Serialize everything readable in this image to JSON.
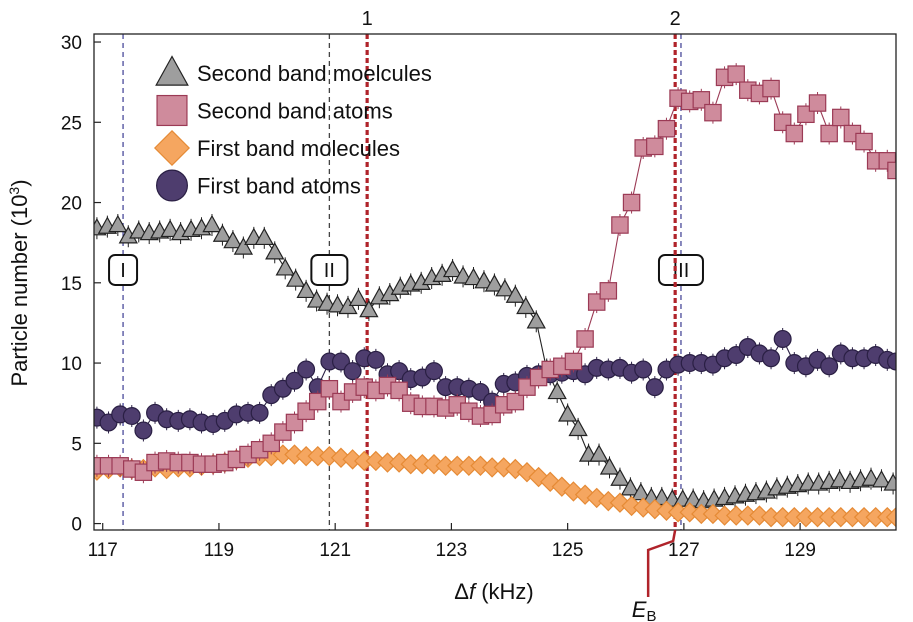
{
  "chart_data": {
    "type": "scatter",
    "xlabel_symbol": "Δ",
    "xlabel_var": "f",
    "xlabel_unit": " (kHz)",
    "ylabel": "Particle number (10",
    "ylabel_exp": "3",
    "ylabel_close": ")",
    "xlim": [
      116.85,
      130.65
    ],
    "ylim": [
      -0.4,
      30.5
    ],
    "xticks": [
      117,
      119,
      121,
      123,
      125,
      127,
      129
    ],
    "yticks": [
      0,
      5,
      10,
      15,
      20,
      25,
      30
    ],
    "markers": [
      {
        "label": "1",
        "x": 121.55,
        "color": "#b0232a"
      },
      {
        "label": "2",
        "x": 126.85,
        "color": "#b0232a"
      }
    ],
    "regions": [
      {
        "label": "I",
        "x": 117.35,
        "label_x": 117.35,
        "label_y": 15.8,
        "color": "#4a4a9a"
      },
      {
        "label": "II",
        "x": 120.9,
        "label_x": 120.9,
        "label_y": 15.8,
        "color": "#444444"
      },
      {
        "label": "III",
        "x": 126.95,
        "label_x": 126.95,
        "label_y": 15.8,
        "color": "#4a4a9a"
      }
    ],
    "eb_label": "E",
    "eb_sub": "B",
    "eb_x": 126.85,
    "series": [
      {
        "name": "Second band moelcules",
        "marker": "triangle",
        "fill": "#9e9e9e",
        "stroke": "#222222",
        "line": "#222222",
        "x": [
          116.9,
          117.08,
          117.26,
          117.44,
          117.62,
          117.8,
          117.98,
          118.16,
          118.34,
          118.52,
          118.7,
          118.88,
          119.06,
          119.24,
          119.42,
          119.6,
          119.78,
          119.96,
          120.14,
          120.32,
          120.5,
          120.68,
          120.86,
          121.04,
          121.22,
          121.4,
          121.58,
          121.76,
          121.94,
          122.12,
          122.3,
          122.48,
          122.66,
          122.84,
          123.02,
          123.2,
          123.38,
          123.56,
          123.74,
          123.92,
          124.1,
          124.28,
          124.46,
          124.64,
          124.82,
          125.0,
          125.18,
          125.36,
          125.54,
          125.72,
          125.9,
          126.08,
          126.26,
          126.44,
          126.62,
          126.8,
          126.98,
          127.16,
          127.34,
          127.52,
          127.7,
          127.88,
          128.06,
          128.24,
          128.42,
          128.6,
          128.78,
          128.96,
          129.14,
          129.32,
          129.5,
          129.68,
          129.86,
          130.04,
          130.22,
          130.4,
          130.6
        ],
        "y": [
          18.4,
          18.5,
          18.6,
          17.9,
          18.2,
          18.1,
          18.2,
          18.3,
          18.1,
          18.3,
          18.4,
          18.6,
          18.0,
          17.6,
          17.2,
          17.8,
          17.8,
          16.9,
          15.9,
          15.2,
          14.5,
          13.9,
          13.7,
          13.6,
          13.5,
          14.0,
          13.3,
          14.1,
          14.3,
          14.7,
          14.9,
          15.0,
          15.3,
          15.5,
          15.8,
          15.4,
          15.3,
          15.1,
          14.9,
          14.6,
          14.2,
          13.5,
          12.6,
          9.6,
          8.2,
          6.8,
          5.9,
          4.3,
          4.3,
          3.5,
          2.8,
          2.2,
          1.9,
          1.6,
          1.6,
          1.5,
          1.5,
          1.5,
          1.4,
          1.5,
          1.6,
          1.7,
          1.8,
          1.9,
          2.0,
          2.2,
          2.3,
          2.4,
          2.5,
          2.5,
          2.6,
          2.7,
          2.6,
          2.7,
          2.8,
          2.7,
          2.5
        ]
      },
      {
        "name": "Second band atoms",
        "marker": "square",
        "fill": "#cf8b9c",
        "stroke": "#9b3a55",
        "line": "#9b3a55",
        "x": [
          116.9,
          117.1,
          117.3,
          117.5,
          117.7,
          117.9,
          118.1,
          118.3,
          118.5,
          118.7,
          118.9,
          119.1,
          119.3,
          119.5,
          119.7,
          119.9,
          120.1,
          120.3,
          120.5,
          120.7,
          120.9,
          121.1,
          121.3,
          121.5,
          121.7,
          121.9,
          122.1,
          122.3,
          122.5,
          122.7,
          122.9,
          123.1,
          123.3,
          123.5,
          123.7,
          123.9,
          124.1,
          124.3,
          124.5,
          124.7,
          124.9,
          125.1,
          125.3,
          125.5,
          125.7,
          125.9,
          126.1,
          126.3,
          126.5,
          126.7,
          126.9,
          127.1,
          127.3,
          127.5,
          127.7,
          127.9,
          128.1,
          128.3,
          128.5,
          128.7,
          128.9,
          129.1,
          129.3,
          129.5,
          129.7,
          129.9,
          130.1,
          130.3,
          130.5,
          130.65
        ],
        "y": [
          3.6,
          3.6,
          3.6,
          3.4,
          3.2,
          3.8,
          3.9,
          3.8,
          3.8,
          3.7,
          3.7,
          3.8,
          4.0,
          4.3,
          4.6,
          5.0,
          5.7,
          6.3,
          7.0,
          7.6,
          8.4,
          7.6,
          8.2,
          8.5,
          8.3,
          8.6,
          8.3,
          7.5,
          7.3,
          7.3,
          7.2,
          7.4,
          7.0,
          6.7,
          6.8,
          7.4,
          7.6,
          8.5,
          9.1,
          9.6,
          9.8,
          10.1,
          11.5,
          13.8,
          14.5,
          18.6,
          20.0,
          23.4,
          23.5,
          24.6,
          26.5,
          26.3,
          26.4,
          25.6,
          27.8,
          28.0,
          27.0,
          26.8,
          27.1,
          25.0,
          24.3,
          25.5,
          26.2,
          24.3,
          25.3,
          24.3,
          23.8,
          22.6,
          22.6,
          22.0
        ]
      },
      {
        "name": "First band molecules",
        "marker": "diamond",
        "fill": "#f5a660",
        "stroke": "#e58a35",
        "line": "#e58a35",
        "x": [
          116.9,
          117.1,
          117.3,
          117.5,
          117.7,
          117.9,
          118.1,
          118.3,
          118.5,
          118.7,
          118.9,
          119.1,
          119.3,
          119.5,
          119.7,
          119.9,
          120.1,
          120.3,
          120.5,
          120.7,
          120.9,
          121.1,
          121.3,
          121.5,
          121.7,
          121.9,
          122.1,
          122.3,
          122.5,
          122.7,
          122.9,
          123.1,
          123.3,
          123.5,
          123.7,
          123.9,
          124.1,
          124.3,
          124.5,
          124.7,
          124.9,
          125.1,
          125.3,
          125.5,
          125.7,
          125.9,
          126.1,
          126.3,
          126.5,
          126.7,
          126.9,
          127.1,
          127.3,
          127.5,
          127.7,
          127.9,
          128.1,
          128.3,
          128.5,
          128.7,
          128.9,
          129.1,
          129.3,
          129.5,
          129.7,
          129.9,
          130.1,
          130.3,
          130.5,
          130.65
        ],
        "y": [
          3.3,
          3.4,
          3.5,
          3.4,
          3.4,
          3.5,
          3.4,
          3.5,
          3.5,
          3.6,
          3.7,
          3.8,
          4.0,
          4.1,
          4.2,
          4.2,
          4.3,
          4.3,
          4.2,
          4.2,
          4.2,
          4.1,
          4.0,
          3.9,
          3.9,
          3.8,
          3.8,
          3.7,
          3.7,
          3.7,
          3.6,
          3.6,
          3.6,
          3.6,
          3.5,
          3.5,
          3.4,
          3.2,
          2.9,
          2.6,
          2.3,
          2.0,
          1.8,
          1.6,
          1.4,
          1.3,
          1.1,
          1.0,
          0.9,
          0.8,
          0.7,
          0.7,
          0.6,
          0.6,
          0.5,
          0.5,
          0.5,
          0.5,
          0.4,
          0.4,
          0.4,
          0.4,
          0.4,
          0.4,
          0.4,
          0.4,
          0.4,
          0.4,
          0.4,
          0.4
        ]
      },
      {
        "name": "First band atoms",
        "marker": "circle",
        "fill": "#4e3d6e",
        "stroke": "#2a1f44",
        "line": "#2a1f44",
        "x": [
          116.9,
          117.1,
          117.3,
          117.5,
          117.7,
          117.9,
          118.1,
          118.3,
          118.5,
          118.7,
          118.9,
          119.1,
          119.3,
          119.5,
          119.7,
          119.9,
          120.1,
          120.3,
          120.5,
          120.7,
          120.9,
          121.1,
          121.3,
          121.5,
          121.7,
          121.9,
          122.1,
          122.3,
          122.5,
          122.7,
          122.9,
          123.1,
          123.3,
          123.5,
          123.7,
          123.9,
          124.1,
          124.3,
          124.5,
          124.7,
          124.9,
          125.1,
          125.3,
          125.5,
          125.7,
          125.9,
          126.1,
          126.3,
          126.5,
          126.7,
          126.9,
          127.1,
          127.3,
          127.5,
          127.7,
          127.9,
          128.1,
          128.3,
          128.5,
          128.7,
          128.9,
          129.1,
          129.3,
          129.5,
          129.7,
          129.9,
          130.1,
          130.3,
          130.5,
          130.65
        ],
        "y": [
          6.6,
          6.3,
          6.8,
          6.7,
          5.8,
          6.9,
          6.5,
          6.4,
          6.5,
          6.3,
          6.2,
          6.4,
          6.8,
          6.9,
          6.9,
          8.0,
          8.4,
          8.9,
          9.6,
          8.5,
          10.1,
          10.1,
          9.5,
          10.3,
          10.2,
          9.3,
          9.5,
          9.0,
          9.1,
          9.5,
          8.5,
          8.5,
          8.4,
          8.2,
          7.6,
          8.7,
          8.8,
          9.2,
          9.3,
          9.3,
          9.4,
          9.5,
          9.3,
          9.7,
          9.6,
          9.7,
          9.4,
          9.6,
          8.5,
          9.6,
          9.9,
          10.0,
          10.0,
          9.9,
          10.3,
          10.5,
          11.0,
          10.6,
          10.3,
          11.5,
          10.0,
          9.8,
          10.2,
          9.8,
          10.6,
          10.3,
          10.3,
          10.5,
          10.2,
          10.1
        ]
      }
    ],
    "legend_placement": "top-left",
    "grid": false
  }
}
